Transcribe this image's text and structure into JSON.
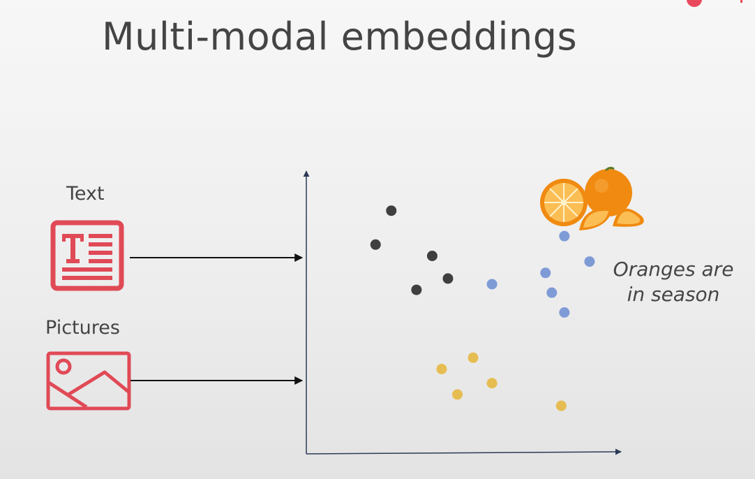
{
  "slide": {
    "title": "Multi-modal embeddings"
  },
  "inputs": [
    {
      "label": "Text",
      "icon": "text-document-icon"
    },
    {
      "label": "Pictures",
      "icon": "picture-icon"
    }
  ],
  "caption": {
    "line1": "Oranges are",
    "line2": "in season"
  },
  "image": {
    "icon": "oranges-image"
  },
  "colors": {
    "icon_red": "#e04a56",
    "cluster_dark": "#3f3f3f",
    "cluster_blue": "#7f9bd6",
    "cluster_yellow": "#e6bd52",
    "axis": "#2b3a55"
  },
  "chart_data": {
    "type": "scatter",
    "title": "",
    "xlabel": "",
    "ylabel": "",
    "xlim": [
      0,
      100
    ],
    "ylim": [
      0,
      100
    ],
    "grid": false,
    "series": [
      {
        "color": "#3f3f3f",
        "points": [
          [
            27,
            86
          ],
          [
            22,
            74
          ],
          [
            40,
            70
          ],
          [
            35,
            58
          ],
          [
            45,
            62
          ]
        ]
      },
      {
        "color": "#7f9bd6",
        "points": [
          [
            82,
            77
          ],
          [
            90,
            68
          ],
          [
            76,
            64
          ],
          [
            59,
            60
          ],
          [
            78,
            57
          ],
          [
            82,
            50
          ]
        ]
      },
      {
        "color": "#e6bd52",
        "points": [
          [
            53,
            34
          ],
          [
            43,
            30
          ],
          [
            59,
            25
          ],
          [
            48,
            21
          ],
          [
            81,
            17
          ]
        ]
      }
    ]
  }
}
